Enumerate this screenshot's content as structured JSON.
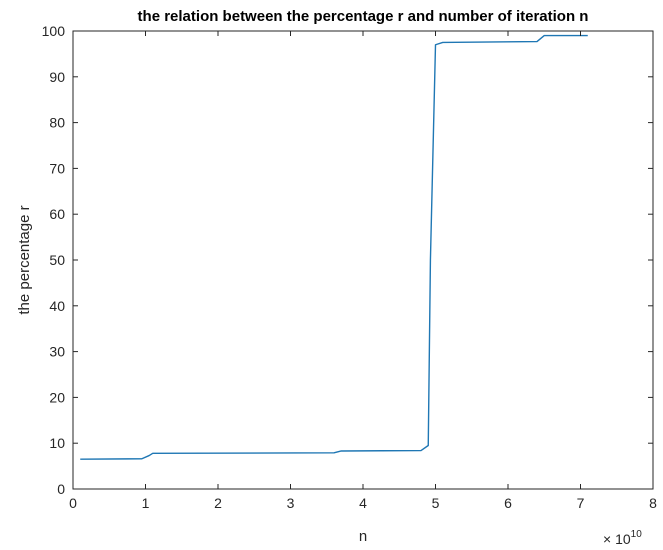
{
  "chart_data": {
    "type": "line",
    "title": "the relation between the percentage r and number of iteration n",
    "xlabel": "n",
    "ylabel": "the percentage r",
    "x_multiplier_label": "× 10",
    "x_multiplier_exponent": "10",
    "xlim": [
      0,
      8
    ],
    "ylim": [
      0,
      100
    ],
    "x_ticks": [
      "0",
      "1",
      "2",
      "3",
      "4",
      "5",
      "6",
      "7",
      "8"
    ],
    "y_ticks": [
      "0",
      "10",
      "20",
      "30",
      "40",
      "50",
      "60",
      "70",
      "80",
      "90",
      "100"
    ],
    "grid": false,
    "series": [
      {
        "color": "#1f77b4",
        "x": [
          0.1,
          0.95,
          1.05,
          1.1,
          3.6,
          3.7,
          4.8,
          4.9,
          4.93,
          5.0,
          5.1,
          6.4,
          6.5,
          7.1
        ],
        "y": [
          6.5,
          6.6,
          7.3,
          7.8,
          7.9,
          8.3,
          8.4,
          9.5,
          50,
          97.0,
          97.5,
          97.7,
          99.0,
          99.0
        ]
      }
    ]
  }
}
